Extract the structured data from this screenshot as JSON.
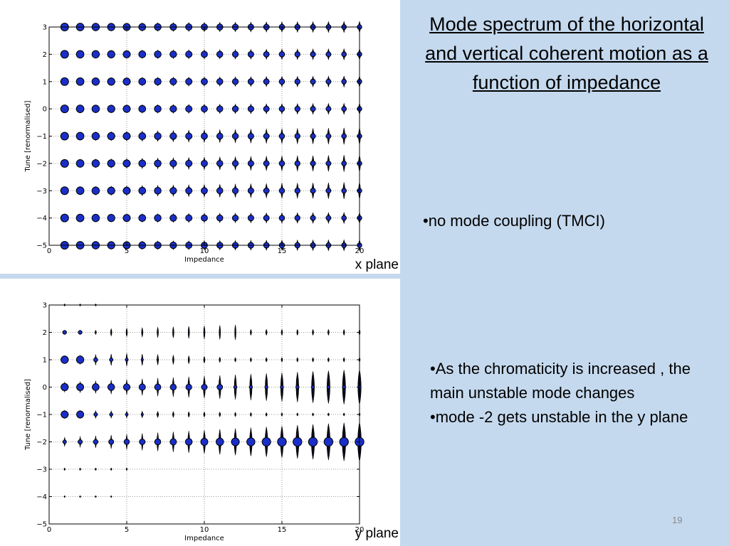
{
  "slide": {
    "title": "Mode spectrum of the horizontal and vertical coherent motion as a function of impedance",
    "note1": "•no mode coupling (TMCI)",
    "note2_line1": "•As the chromaticity is increased , the main unstable mode changes",
    "note2_line2": "•mode -2 gets unstable in the y plane",
    "page_number": "19",
    "background_color": "#c5d9ee"
  },
  "chart_data": [
    {
      "type": "scatter",
      "plane_label": "x plane",
      "xlabel": "Impedance",
      "ylabel": "Tune [renormalised]",
      "xlim": [
        0,
        20
      ],
      "ylim": [
        -5,
        3
      ],
      "xticks": [
        0,
        5,
        10,
        15,
        20
      ],
      "yticks": [
        -5,
        -4,
        -3,
        -2,
        -1,
        0,
        1,
        2,
        3
      ],
      "grid": "dotted",
      "x": [
        1,
        2,
        3,
        4,
        5,
        6,
        7,
        8,
        9,
        10,
        11,
        12,
        13,
        14,
        15,
        16,
        17,
        18,
        19,
        20
      ],
      "modes": [
        3,
        2,
        1,
        0,
        -1,
        -2,
        -3,
        -4,
        -5
      ],
      "marker_color": "#1a2fc8",
      "marker_edge": "#000000",
      "note": "blue dot at every integer impedance for every mode; vertical spread grows slightly with impedance for modes -1 to -3"
    },
    {
      "type": "scatter",
      "plane_label": "y plane",
      "xlabel": "Impedance",
      "ylabel": "Tune [renormalised]",
      "xlim": [
        0,
        20
      ],
      "ylim": [
        -5,
        3
      ],
      "xticks": [
        0,
        5,
        10,
        15,
        20
      ],
      "yticks": [
        -5,
        -4,
        -3,
        -2,
        -1,
        0,
        1,
        2,
        3
      ],
      "grid": "dotted",
      "x": [
        1,
        2,
        3,
        4,
        5,
        6,
        7,
        8,
        9,
        10,
        11,
        12,
        13,
        14,
        15,
        16,
        17,
        18,
        19,
        20
      ],
      "modes": [
        3,
        2,
        1,
        0,
        -1,
        -2,
        -3,
        -4
      ],
      "marker_color": "#1a2fc8",
      "marker_edge": "#000000"
    }
  ]
}
